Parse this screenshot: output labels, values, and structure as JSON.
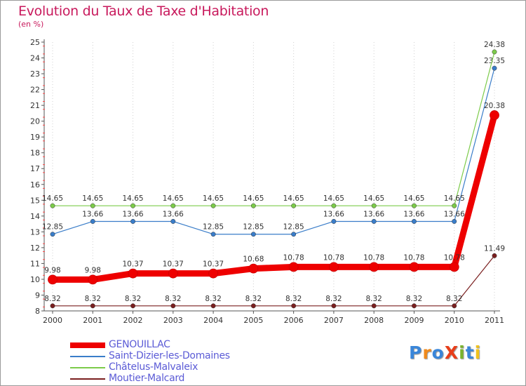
{
  "title": "Evolution du Taux de Taxe d'Habitation",
  "subtitle": "(en %)",
  "logo": {
    "text": "ProXiti",
    "letter_colors": [
      "#3a86d9",
      "#f08a1c",
      "#3a86d9",
      "#e83e1a",
      "#7ab32e",
      "#3a86d9",
      "#f0c21c"
    ]
  },
  "chart_data": {
    "type": "line",
    "title": "Evolution du Taux de Taxe d'Habitation",
    "ylabel": "(en %)",
    "xlabel": "",
    "categories": [
      "2000",
      "2001",
      "2002",
      "2003",
      "2004",
      "2005",
      "2006",
      "2007",
      "2008",
      "2009",
      "2010",
      "2011"
    ],
    "ylim": [
      8,
      25
    ],
    "yticks": [
      "8",
      "9",
      "10",
      "11",
      "12",
      "13",
      "14",
      "15",
      "16",
      "17",
      "18",
      "19",
      "20",
      "21",
      "22",
      "23",
      "24",
      "25"
    ],
    "legend_position": "bottom-left",
    "series": [
      {
        "name": "GENOUILLAC",
        "color": "#ee0000",
        "emphasis": "thick",
        "values": [
          9.98,
          9.98,
          10.37,
          10.37,
          10.37,
          10.68,
          10.78,
          10.78,
          10.78,
          10.78,
          10.78,
          20.38
        ],
        "labels": [
          "9.98",
          "9.98",
          "10.37",
          "10.37",
          "10.37",
          "10.68",
          "10.78",
          "10.78",
          "10.78",
          "10.78",
          "10.78",
          "20.38"
        ]
      },
      {
        "name": "Saint-Dizier-les-Domaines",
        "color": "#3a7dc9",
        "emphasis": "normal",
        "values": [
          12.85,
          13.66,
          13.66,
          13.66,
          12.85,
          12.85,
          12.85,
          13.66,
          13.66,
          13.66,
          13.66,
          23.35
        ],
        "labels": [
          "12.85",
          "13.66",
          "13.66",
          "13.66",
          "12.85",
          "12.85",
          "12.85",
          "13.66",
          "13.66",
          "13.66",
          "13.66",
          "23.35"
        ]
      },
      {
        "name": "Châtelus-Malvaleix",
        "color": "#7ccb4a",
        "emphasis": "normal",
        "values": [
          14.65,
          14.65,
          14.65,
          14.65,
          14.65,
          14.65,
          14.65,
          14.65,
          14.65,
          14.65,
          14.65,
          24.38
        ],
        "labels": [
          "14.65",
          "14.65",
          "14.65",
          "14.65",
          "14.65",
          "14.65",
          "14.65",
          "14.65",
          "14.65",
          "14.65",
          "14.65",
          "24.38"
        ]
      },
      {
        "name": "Moutier-Malcard",
        "color": "#7a1f1f",
        "emphasis": "normal",
        "values": [
          8.32,
          8.32,
          8.32,
          8.32,
          8.32,
          8.32,
          8.32,
          8.32,
          8.32,
          8.32,
          8.32,
          11.49
        ],
        "labels": [
          "8.32",
          "8.32",
          "8.32",
          "8.32",
          "8.32",
          "8.32",
          "8.32",
          "8.32",
          "8.32",
          "8.32",
          "8.32",
          "11.49"
        ]
      }
    ]
  }
}
